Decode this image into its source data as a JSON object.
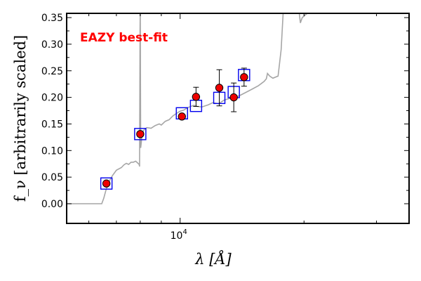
{
  "chart_data": {
    "type": "scatter",
    "title": "",
    "xlabel": "λ [Å]",
    "ylabel": "f_ν [arbitrarily scaled]",
    "x_scale": "log",
    "xlim": [
      5300,
      36000
    ],
    "ylim": [
      -0.037,
      0.358
    ],
    "x_tick_label": {
      "base": "10",
      "exponent": "4",
      "value": 10000
    },
    "y_ticks": [
      0.0,
      0.05,
      0.1,
      0.15,
      0.2,
      0.25,
      0.3,
      0.35
    ],
    "y_tick_labels": [
      "0.00",
      "0.05",
      "0.10",
      "0.15",
      "0.20",
      "0.25",
      "0.30",
      "0.35"
    ],
    "annotation": "EAZY best-fit",
    "colors": {
      "template": "#a6a6a6",
      "model": "#0000ee",
      "observed": "#ee0000",
      "annotation": "#ff0000"
    },
    "series": [
      {
        "kind": "line",
        "x": [
          5300,
          6450,
          6520,
          6600,
          6700,
          6850,
          7000,
          7200,
          7300,
          7400,
          7500,
          7600,
          7700,
          7800,
          7900,
          7950,
          7970,
          7990,
          8000,
          8020,
          8100,
          8200,
          8300,
          8500,
          8700,
          8900,
          9000,
          9200,
          9400,
          9600,
          9800,
          10000,
          10200,
          10400,
          10600,
          10800,
          11000,
          11300,
          11700,
          12000,
          12400,
          12800,
          13200,
          13600,
          14000,
          14500,
          15000,
          15500,
          16000,
          16200,
          16300,
          16500,
          16800,
          17300,
          17600,
          17800,
          17900,
          18200,
          18500,
          19000,
          19400,
          19500,
          19600,
          19800,
          20500
        ],
        "y": [
          0.0,
          0.0,
          0.01,
          0.025,
          0.04,
          0.053,
          0.063,
          0.068,
          0.073,
          0.076,
          0.074,
          0.078,
          0.078,
          0.08,
          0.076,
          0.074,
          0.07,
          0.33,
          0.37,
          0.105,
          0.135,
          0.14,
          0.143,
          0.142,
          0.147,
          0.15,
          0.148,
          0.155,
          0.158,
          0.165,
          0.17,
          0.174,
          0.176,
          0.18,
          0.183,
          0.185,
          0.183,
          0.182,
          0.186,
          0.19,
          0.188,
          0.195,
          0.198,
          0.2,
          0.204,
          0.21,
          0.216,
          0.222,
          0.23,
          0.235,
          0.245,
          0.24,
          0.236,
          0.24,
          0.29,
          0.36,
          0.36,
          0.36,
          0.38,
          0.38,
          0.37,
          0.355,
          0.34,
          0.35,
          0.36
        ]
      },
      {
        "kind": "model",
        "x": [
          6620,
          8000,
          10100,
          10930,
          12450,
          13500,
          14300
        ],
        "y": [
          0.038,
          0.131,
          0.17,
          0.184,
          0.199,
          0.21,
          0.242
        ]
      },
      {
        "kind": "observed",
        "x": [
          6620,
          8000,
          10100,
          10930,
          12450,
          13500,
          14300
        ],
        "y": [
          0.038,
          0.131,
          0.164,
          0.201,
          0.218,
          0.2,
          0.238
        ],
        "yerr": [
          0.004,
          0.004,
          0.004,
          0.018,
          0.034,
          0.027,
          0.017
        ]
      }
    ]
  }
}
